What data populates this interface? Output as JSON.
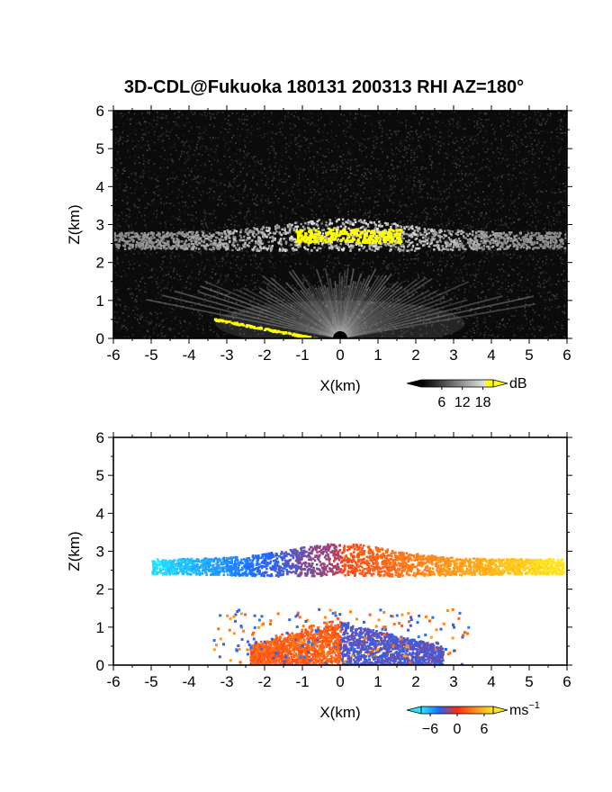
{
  "title": "3D-CDL@Fukuoka 180131 200313 RHI AZ=180°",
  "colors": {
    "highlight": "#ffff00",
    "background_panel": "#0b0b0b",
    "velocity_cyan": "#22e6ff",
    "velocity_blue": "#1e64ff",
    "velocity_red": "#ff2a10",
    "velocity_orange": "#ff8a1a",
    "velocity_yellow": "#ffe51a"
  },
  "chart_data": [
    {
      "type": "heatmap",
      "name_of_quantity": "dB",
      "xlabel": "X(km)",
      "ylabel": "Z(km)",
      "xlim": [
        -6,
        6
      ],
      "ylim": [
        0,
        6
      ],
      "xticks": [
        "-6",
        "-5",
        "-4",
        "-3",
        "-2",
        "-1",
        "0",
        "1",
        "2",
        "3",
        "4",
        "5",
        "6"
      ],
      "yticks": [
        "0",
        "1",
        "2",
        "3",
        "4",
        "5",
        "6"
      ],
      "grid": false,
      "colorbar": {
        "unit": "dB",
        "ticks": [
          "6",
          "12",
          "18"
        ],
        "range": [
          0,
          21
        ],
        "colors": [
          "#000000",
          "#ffffff",
          "#ffff00"
        ]
      },
      "features": [
        {
          "label": "cloud layer",
          "x_range": [
            -6,
            6
          ],
          "z_range": [
            2.2,
            3.2
          ],
          "value_db": 12
        },
        {
          "label": "high return core",
          "x_range": [
            -1.2,
            1.6
          ],
          "z_range": [
            2.5,
            2.9
          ],
          "value_db": 20
        },
        {
          "label": "ground clutter",
          "x_range": [
            -3.4,
            -0.6
          ],
          "z_range": [
            0,
            0.5
          ],
          "value_db": 20
        },
        {
          "label": "boundary layer",
          "x_range": [
            -4,
            4
          ],
          "z_range": [
            0,
            1.3
          ],
          "value_db": 8
        }
      ]
    },
    {
      "type": "heatmap",
      "name_of_quantity": "velocity",
      "xlabel": "X(km)",
      "ylabel": "Z(km)",
      "xlim": [
        -6,
        6
      ],
      "ylim": [
        0,
        6
      ],
      "xticks": [
        "-6",
        "-5",
        "-4",
        "-3",
        "-2",
        "-1",
        "0",
        "1",
        "2",
        "3",
        "4",
        "5",
        "6"
      ],
      "yticks": [
        "0",
        "1",
        "2",
        "3",
        "4",
        "5",
        "6"
      ],
      "grid": false,
      "colorbar": {
        "unit": "ms",
        "unit_exponent": "−1",
        "ticks": [
          "−6",
          "0",
          "6"
        ],
        "range": [
          -8,
          8
        ],
        "colors": [
          "#22e6ff",
          "#1e64ff",
          "#ff2a10",
          "#ff8a1a",
          "#ffe51a"
        ]
      },
      "features": [
        {
          "label": "cloud layer west",
          "x_range": [
            -5.0,
            0
          ],
          "z_range": [
            2.2,
            3.2
          ],
          "velocity": -6
        },
        {
          "label": "cloud layer east",
          "x_range": [
            0,
            5.9
          ],
          "z_range": [
            2.3,
            3.3
          ],
          "velocity": 6
        },
        {
          "label": "boundary layer west",
          "x_range": [
            -2.6,
            0
          ],
          "z_range": [
            0,
            1.4
          ],
          "velocity": 2
        },
        {
          "label": "boundary layer east",
          "x_range": [
            0,
            3.3
          ],
          "z_range": [
            0,
            1.3
          ],
          "velocity": -3
        }
      ]
    }
  ]
}
